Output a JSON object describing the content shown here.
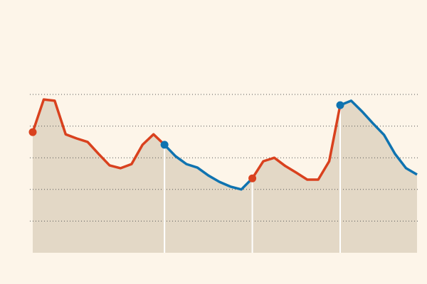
{
  "chart_data": {
    "type": "line",
    "x": [
      0,
      1,
      2,
      3,
      4,
      5,
      6,
      7,
      8,
      9,
      10,
      11,
      12,
      13,
      14,
      15,
      16,
      17,
      18,
      19,
      20,
      21,
      22,
      23,
      24,
      25,
      26,
      27,
      28,
      29,
      30,
      31,
      32,
      33,
      34,
      35
    ],
    "series": [
      {
        "color": "#d9411e",
        "values": [
          3.81,
          4.84,
          4.8,
          3.74,
          3.61,
          3.5,
          3.12,
          2.76,
          2.67,
          2.8,
          3.41,
          3.74,
          3.41,
          null,
          null,
          null,
          null,
          null,
          null,
          null,
          2.35,
          2.89,
          3.0,
          2.74,
          2.53,
          2.31,
          2.31,
          2.89,
          4.66,
          null,
          null,
          null,
          null,
          null,
          null,
          null
        ]
      },
      {
        "color": "#0f73b0",
        "values": [
          null,
          null,
          null,
          null,
          null,
          null,
          null,
          null,
          null,
          null,
          null,
          null,
          3.41,
          3.05,
          2.8,
          2.69,
          2.44,
          2.24,
          2.09,
          2.0,
          2.35,
          null,
          null,
          null,
          null,
          null,
          null,
          null,
          4.66,
          4.8,
          4.46,
          4.08,
          3.72,
          3.12,
          2.67,
          2.47
        ]
      }
    ],
    "area_color": "#e3d8c6",
    "xlim": [
      0,
      35
    ],
    "ylim": [
      0,
      5
    ],
    "yticks": [
      1,
      2,
      3,
      4,
      5
    ],
    "grid": true
  }
}
